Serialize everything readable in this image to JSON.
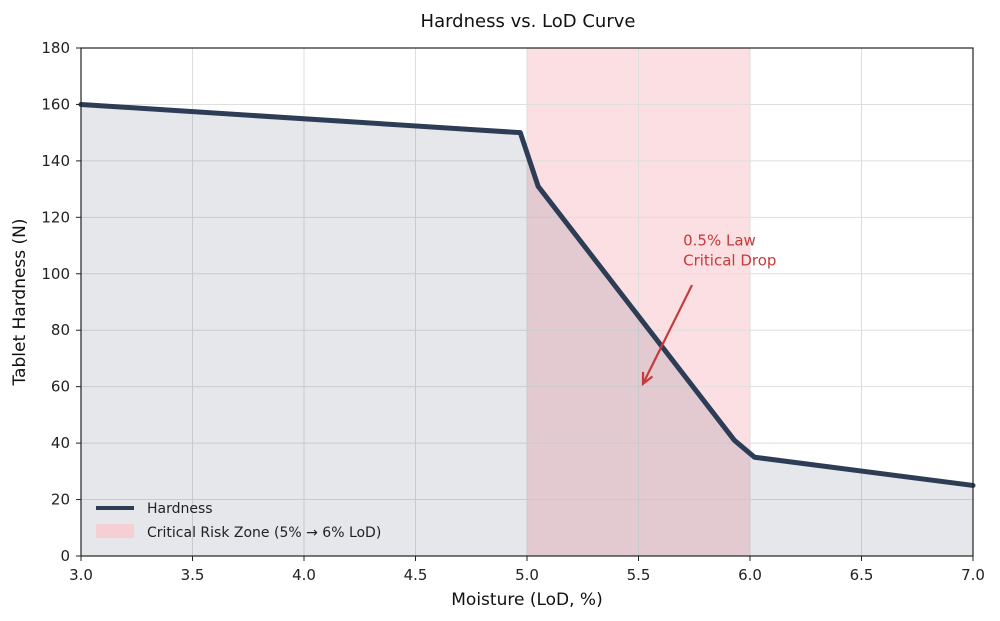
{
  "chart_data": {
    "type": "line",
    "title": "Hardness vs. LoD Curve",
    "xlabel": "Moisture (LoD, %)",
    "ylabel": "Tablet Hardness (N)",
    "xlim": [
      3.0,
      7.0
    ],
    "ylim": [
      0,
      180
    ],
    "xticks": [
      3.0,
      3.5,
      4.0,
      4.5,
      5.0,
      5.5,
      6.0,
      6.5,
      7.0
    ],
    "xtick_labels": [
      "3.0",
      "3.5",
      "4.0",
      "4.5",
      "5.0",
      "5.5",
      "6.0",
      "6.5",
      "7.0"
    ],
    "yticks": [
      0,
      20,
      40,
      60,
      80,
      100,
      120,
      140,
      160,
      180
    ],
    "ytick_labels": [
      "0",
      "20",
      "40",
      "60",
      "80",
      "100",
      "120",
      "140",
      "160",
      "180"
    ],
    "grid": true,
    "legend_position": "bottom-left",
    "series": [
      {
        "name": "Hardness",
        "color": "#2e3d56",
        "fill": true,
        "x": [
          3.0,
          4.97,
          5.05,
          5.93,
          6.02,
          7.0
        ],
        "y": [
          160,
          150,
          131,
          41,
          35,
          25
        ]
      }
    ],
    "shaded_regions": [
      {
        "name": "Critical Risk Zone (5% → 6% LoD)",
        "x_start": 5.0,
        "x_end": 6.0,
        "color": "#f9c9ce"
      }
    ],
    "annotations": [
      {
        "lines": [
          "0.5% Law",
          "Critical Drop"
        ],
        "text_at": [
          5.7,
          103
        ],
        "arrow_from": [
          5.74,
          96
        ],
        "arrow_to": [
          5.52,
          61
        ],
        "color": "#c63a3a"
      }
    ]
  }
}
